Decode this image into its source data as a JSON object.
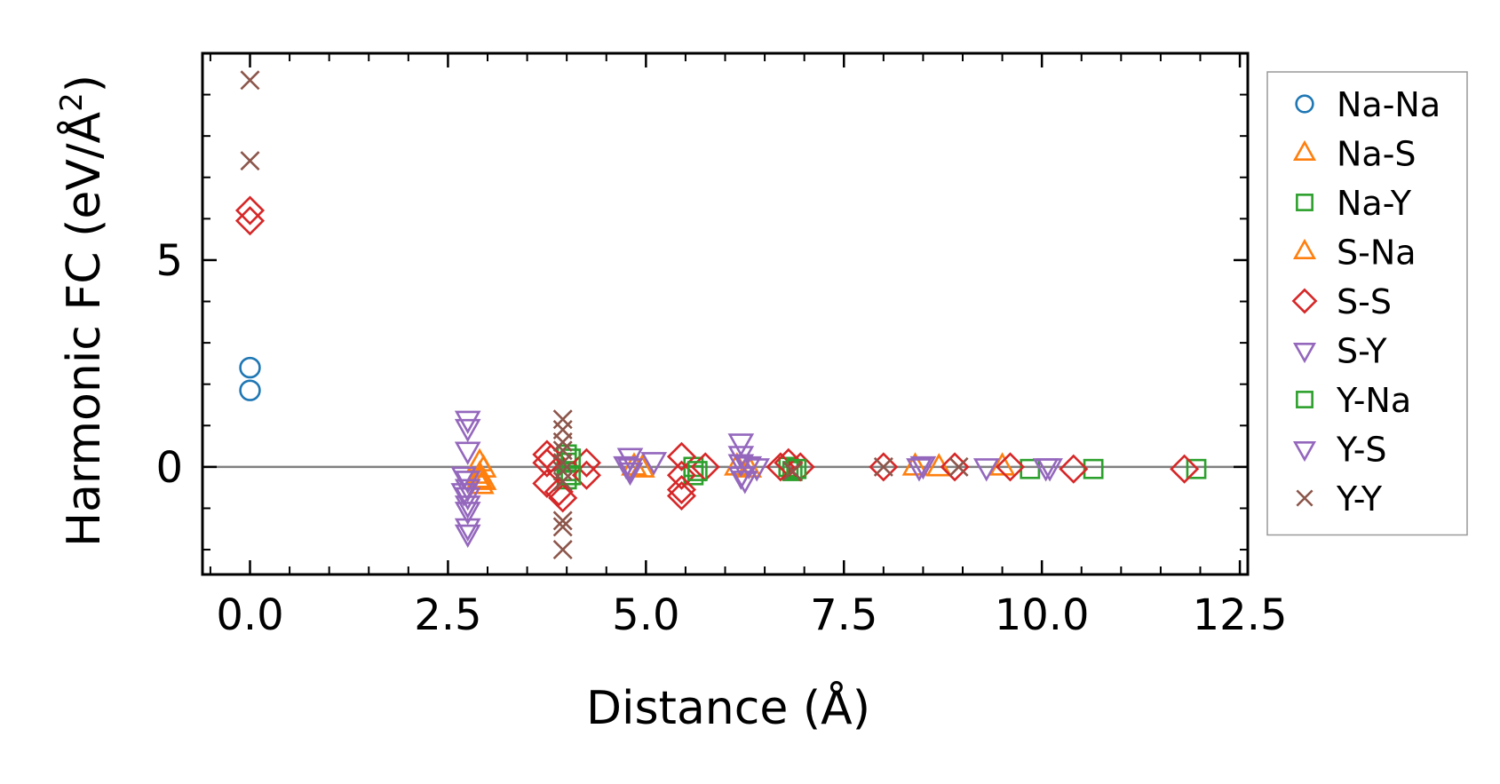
{
  "chart_data": {
    "type": "scatter",
    "title": "",
    "xlabel": "Distance (Å)",
    "ylabel_main": "Harmonic FC (eV/Å",
    "ylabel_sup": "2",
    "ylabel_close": ")",
    "xlim": [
      -0.6,
      12.6
    ],
    "ylim": [
      -2.6,
      10.0
    ],
    "xticks": [
      0.0,
      2.5,
      5.0,
      7.5,
      10.0,
      12.5
    ],
    "xtick_labels": [
      "0.0",
      "2.5",
      "5.0",
      "7.5",
      "10.0",
      "12.5"
    ],
    "yticks": [
      0,
      5
    ],
    "ytick_labels": [
      "0",
      "5"
    ],
    "zero_line": true,
    "legend_position": "outside-right",
    "series": [
      {
        "name": "Na-Na",
        "marker": "circle",
        "color": "#1f77b4",
        "points": [
          [
            0.0,
            2.4
          ],
          [
            0.0,
            1.85
          ]
        ]
      },
      {
        "name": "Na-S",
        "marker": "triangle-up",
        "color": "#ff7f0e",
        "points": [
          [
            2.9,
            0.1
          ],
          [
            2.9,
            -0.2
          ],
          [
            2.9,
            -0.3
          ],
          [
            2.92,
            -0.45
          ],
          [
            4.95,
            -0.05
          ],
          [
            6.15,
            0.0
          ],
          [
            8.4,
            0.0
          ],
          [
            8.7,
            -0.02
          ]
        ]
      },
      {
        "name": "Na-Y",
        "marker": "square",
        "color": "#2ca02c",
        "points": [
          [
            4.0,
            0.3
          ],
          [
            4.0,
            0.1
          ],
          [
            4.0,
            -0.1
          ],
          [
            4.0,
            -0.3
          ],
          [
            5.6,
            0.0
          ],
          [
            5.6,
            -0.2
          ],
          [
            6.8,
            0.0
          ],
          [
            6.85,
            -0.1
          ],
          [
            9.85,
            -0.05
          ],
          [
            10.65,
            -0.05
          ],
          [
            11.95,
            -0.05
          ]
        ]
      },
      {
        "name": "S-Na",
        "marker": "triangle-up",
        "color": "#ff7f0e",
        "points": [
          [
            2.95,
            -0.05
          ],
          [
            2.95,
            -0.35
          ],
          [
            4.85,
            0.0
          ],
          [
            6.3,
            -0.05
          ],
          [
            9.5,
            0.0
          ]
        ]
      },
      {
        "name": "S-S",
        "marker": "diamond",
        "color": "#d62728",
        "points": [
          [
            0.0,
            6.2
          ],
          [
            0.0,
            5.95
          ],
          [
            3.75,
            0.3
          ],
          [
            3.75,
            0.1
          ],
          [
            3.75,
            -0.4
          ],
          [
            3.8,
            0.2
          ],
          [
            3.9,
            -0.6
          ],
          [
            3.95,
            -0.75
          ],
          [
            4.25,
            0.1
          ],
          [
            4.25,
            -0.2
          ],
          [
            5.45,
            0.25
          ],
          [
            5.45,
            -0.2
          ],
          [
            5.45,
            -0.55
          ],
          [
            5.45,
            -0.7
          ],
          [
            5.75,
            0.0
          ],
          [
            6.7,
            0.0
          ],
          [
            6.8,
            0.1
          ],
          [
            6.95,
            0.0
          ],
          [
            8.0,
            0.0
          ],
          [
            8.9,
            0.0
          ],
          [
            9.6,
            0.0
          ],
          [
            10.4,
            -0.05
          ],
          [
            11.8,
            -0.05
          ]
        ]
      },
      {
        "name": "S-Y",
        "marker": "triangle-down",
        "color": "#9467bd",
        "points": [
          [
            2.75,
            1.15
          ],
          [
            2.75,
            0.95
          ],
          [
            2.75,
            0.4
          ],
          [
            2.75,
            -0.3
          ],
          [
            2.75,
            -0.5
          ],
          [
            2.75,
            -0.7
          ],
          [
            2.75,
            -0.9
          ],
          [
            2.75,
            -1.05
          ],
          [
            2.75,
            -1.45
          ],
          [
            2.75,
            -1.6
          ],
          [
            4.8,
            0.25
          ],
          [
            4.8,
            0.0
          ],
          [
            4.8,
            -0.1
          ],
          [
            5.1,
            0.15
          ],
          [
            6.2,
            0.6
          ],
          [
            6.2,
            0.3
          ],
          [
            6.2,
            0.1
          ],
          [
            6.2,
            -0.2
          ],
          [
            6.25,
            -0.3
          ],
          [
            6.4,
            0.0
          ],
          [
            8.45,
            0.0
          ],
          [
            9.3,
            0.0
          ],
          [
            10.1,
            0.0
          ]
        ]
      },
      {
        "name": "Y-Na",
        "marker": "square",
        "color": "#2ca02c",
        "points": [
          [
            4.05,
            0.2
          ],
          [
            4.05,
            -0.2
          ],
          [
            5.65,
            -0.1
          ],
          [
            6.9,
            -0.05
          ]
        ]
      },
      {
        "name": "Y-S",
        "marker": "triangle-down",
        "color": "#9467bd",
        "points": [
          [
            2.7,
            -0.2
          ],
          [
            2.7,
            -0.6
          ],
          [
            4.75,
            0.05
          ],
          [
            6.3,
            0.05
          ],
          [
            8.5,
            0.05
          ],
          [
            10.05,
            0.0
          ]
        ]
      },
      {
        "name": "Y-Y",
        "marker": "x",
        "color": "#8c564b",
        "points": [
          [
            0.0,
            9.35
          ],
          [
            0.0,
            7.4
          ],
          [
            3.95,
            1.15
          ],
          [
            3.95,
            0.9
          ],
          [
            3.95,
            0.6
          ],
          [
            3.95,
            0.4
          ],
          [
            3.95,
            0.1
          ],
          [
            3.95,
            -0.1
          ],
          [
            3.95,
            -0.35
          ],
          [
            3.95,
            -1.3
          ],
          [
            3.95,
            -1.45
          ],
          [
            3.95,
            -2.0
          ],
          [
            6.85,
            -0.1
          ],
          [
            8.0,
            0.0
          ],
          [
            8.95,
            0.0
          ]
        ]
      }
    ]
  }
}
